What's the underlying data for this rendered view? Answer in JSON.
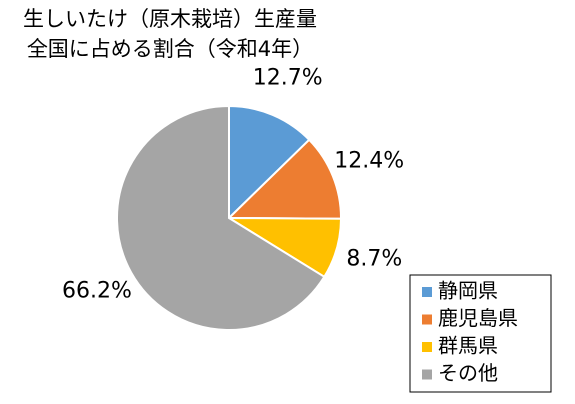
{
  "chart_data": {
    "type": "pie",
    "title": [
      "生しいたけ（原木栽培）生産量",
      "全国に占める割合（令和4年）"
    ],
    "categories": [
      "静岡県",
      "鹿児島県",
      "群馬県",
      "その他"
    ],
    "values": [
      12.7,
      12.4,
      8.7,
      66.2
    ],
    "value_labels": [
      "12.7%",
      "12.4%",
      "8.7%",
      "66.2%"
    ],
    "colors": [
      "#5b9bd5",
      "#ed7d31",
      "#ffc000",
      "#a5a5a5"
    ],
    "legend": "bottom-right"
  }
}
